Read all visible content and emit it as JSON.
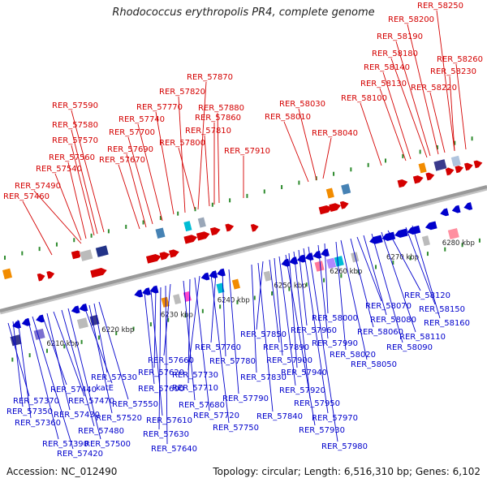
{
  "title": "Rhodococcus erythropolis PR4, complete genome",
  "footer": {
    "accession": "Accession: NC_012490",
    "summary": "Topology: circular; Length: 6,516,310 bp; Genes: 6,102"
  },
  "colors": {
    "forward": "#d40000",
    "reverse": "#0000cc",
    "backbone": "#999999"
  },
  "ticks": [
    "6210 kbp",
    "6220 kbp",
    "6230 kbp",
    "6240 kbp",
    "6250 kbp",
    "6260 kbp",
    "6270 kbp",
    "6280 kbp"
  ],
  "forward_labels": [
    "RER_57460",
    "RER_57490",
    "RER_57540",
    "RER_57560",
    "RER_57570",
    "RER_57580",
    "RER_57590",
    "RER_57670",
    "RER_57690",
    "RER_57700",
    "RER_57740",
    "RER_57770",
    "RER_57820",
    "RER_57870",
    "RER_57800",
    "RER_57810",
    "RER_57860",
    "RER_57880",
    "RER_57910",
    "RER_58010",
    "RER_58030",
    "RER_58040",
    "RER_58100",
    "RER_58130",
    "RER_58140",
    "RER_58180",
    "RER_58190",
    "RER_58200",
    "RER_58250",
    "RER_58220",
    "RER_58230",
    "RER_58260"
  ],
  "reverse_labels": [
    "RER_57370",
    "RER_57350",
    "RER_57360",
    "RER_57390",
    "RER_57420",
    "RER_57440",
    "RER_57430",
    "RER_57470",
    "RER_57480",
    "RER_57500",
    "katE",
    "RER_57520",
    "RER_57530",
    "RER_57550",
    "RER_57600",
    "RER_57610",
    "RER_57620",
    "RER_57630",
    "RER_57640",
    "RER_57660",
    "RER_57680",
    "RER_57710",
    "RER_57720",
    "RER_57730",
    "RER_57750",
    "RER_57760",
    "RER_57780",
    "RER_57790",
    "RER_57830",
    "RER_57840",
    "RER_57850",
    "RER_57890",
    "RER_57900",
    "RER_57920",
    "RER_57930",
    "RER_57940",
    "RER_57950",
    "RER_57960",
    "RER_57970",
    "RER_57980",
    "RER_57990",
    "RER_58000",
    "RER_58020",
    "RER_58050",
    "RER_58060",
    "RER_58070",
    "RER_58080",
    "RER_58090",
    "RER_58110",
    "RER_58120",
    "RER_58150",
    "RER_58160"
  ]
}
